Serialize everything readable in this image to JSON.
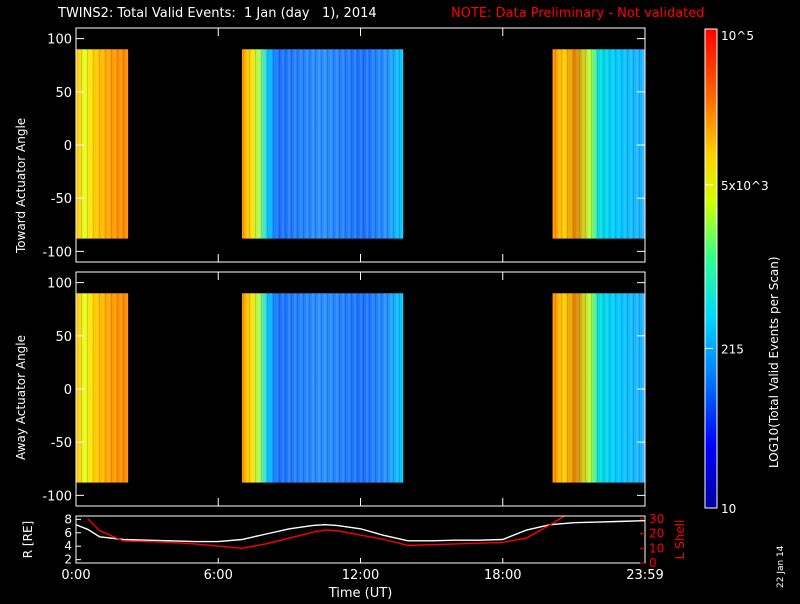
{
  "header": {
    "title": "TWINS2: Total Valid Events:  1 Jan (day   1), 2014",
    "note": "NOTE: Data Preliminary - Not validated",
    "note_color": "#ff0000"
  },
  "colorbar": {
    "label": "LOG10(Total Valid Events per Scan)",
    "tick_labels": [
      "10",
      "215",
      "5x10^3",
      "10^5"
    ],
    "range": [
      10,
      100000
    ],
    "scale": "log",
    "colormap": "rainbow (blue to red)"
  },
  "date_stamp": "22 Jan 14",
  "chart_data": [
    {
      "type": "heatmap",
      "ylabel": "Toward Actuator Angle",
      "ylim": [
        -110,
        110
      ],
      "yticks": [
        "100",
        "50",
        "0",
        "-50",
        "-100"
      ],
      "data_y_range": [
        -88,
        90
      ],
      "x_range_hours": [
        0,
        24
      ],
      "data_blocks_hours": [
        [
          0.0,
          2.2
        ],
        [
          7.0,
          13.8
        ],
        [
          20.1,
          24.0
        ]
      ],
      "block_log_levels": {
        "block1": 4.3,
        "block2": 2.7,
        "block3": 3.4
      }
    },
    {
      "type": "heatmap",
      "ylabel": "Away Actuator Angle",
      "ylim": [
        -110,
        110
      ],
      "yticks": [
        "100",
        "50",
        "0",
        "-50",
        "-100"
      ],
      "data_y_range": [
        -88,
        90
      ],
      "x_range_hours": [
        0,
        24
      ],
      "data_blocks_hours": [
        [
          0.0,
          2.2
        ],
        [
          7.0,
          13.8
        ],
        [
          20.1,
          24.0
        ]
      ],
      "block_log_levels": {
        "block1": 4.2,
        "block2": 2.7,
        "block3": 3.4
      }
    },
    {
      "type": "line",
      "xlabel": "Time (UT)",
      "ylabel": "R [RE]",
      "y2label": "L Shell",
      "xticks": [
        "0:00",
        "6:00",
        "12:00",
        "18:00",
        "23:59"
      ],
      "ylim": [
        1.5,
        8.5
      ],
      "yticks": [
        "2",
        "4",
        "6",
        "8"
      ],
      "y2lim": [
        0,
        32
      ],
      "y2ticks": [
        "0",
        "10",
        "20",
        "30"
      ],
      "series": [
        {
          "color": "#ffffff",
          "axis": "left",
          "x": [
            0,
            0.5,
            1,
            2,
            3,
            4,
            5,
            6,
            7,
            8,
            9,
            10,
            10.5,
            11,
            12,
            13,
            14,
            15,
            16,
            17,
            18,
            19,
            20,
            21,
            22,
            23,
            24
          ],
          "y": [
            7.2,
            6.5,
            5.4,
            5.0,
            4.9,
            4.8,
            4.7,
            4.7,
            5.0,
            5.8,
            6.6,
            7.1,
            7.2,
            7.1,
            6.6,
            5.6,
            4.8,
            4.8,
            4.9,
            4.9,
            5.0,
            6.4,
            7.2,
            7.5,
            7.6,
            7.7,
            7.8
          ]
        },
        {
          "color": "#ff0000",
          "axis": "right",
          "x": [
            0.5,
            1,
            2,
            3,
            4,
            5,
            6,
            7,
            8,
            9,
            10,
            10.5,
            11,
            12,
            13,
            14,
            15,
            16,
            17,
            18,
            19,
            20,
            20.6
          ],
          "y": [
            30,
            22,
            15,
            14.5,
            14,
            13,
            11.5,
            10,
            13,
            17,
            21,
            22.5,
            22,
            19,
            16,
            12,
            12.5,
            13,
            13.5,
            14,
            17,
            26,
            32
          ]
        }
      ]
    }
  ]
}
